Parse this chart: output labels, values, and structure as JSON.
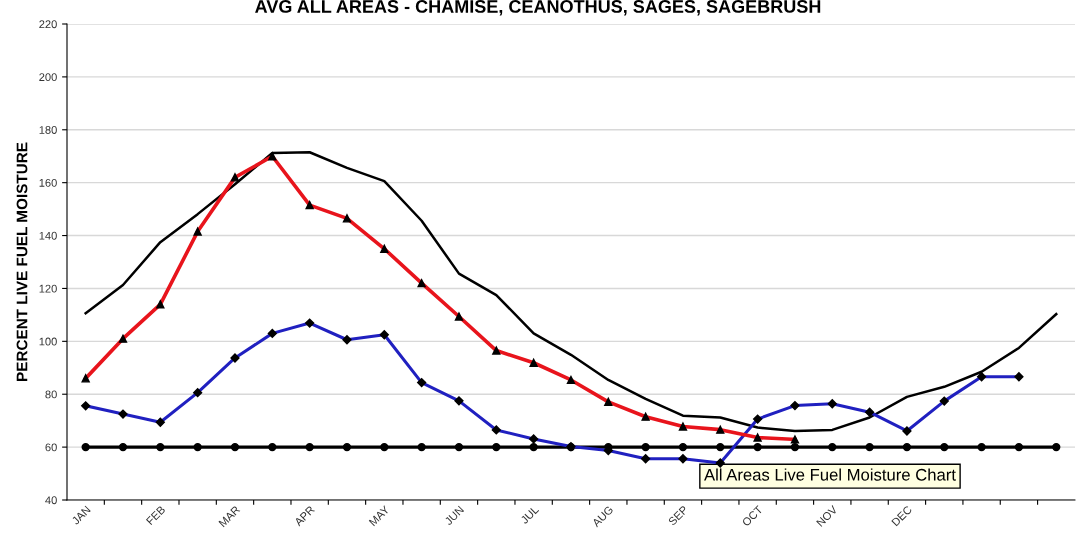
{
  "chart_data": {
    "type": "line",
    "title": "AVG ALL AREAS - CHAMISE, CEANOTHUS, SAGES, SAGEBRUSH",
    "ylabel": "PERCENT LIVE FUEL MOISTURE",
    "categories": [
      "JAN",
      null,
      "FEB",
      null,
      "MAR",
      null,
      "APR",
      null,
      "MAY",
      null,
      "JUN",
      null,
      "JUL",
      null,
      "AUG",
      null,
      "SEP",
      null,
      "OCT",
      null,
      "NOV",
      null,
      "DEC",
      null,
      null,
      null,
      null
    ],
    "series": [
      {
        "color": "#000000",
        "marker": "none",
        "values": [
          110.6,
          121.3,
          137.5,
          148.1,
          159.4,
          171.2,
          171.5,
          165.6,
          160.6,
          145.6,
          125.6,
          117.5,
          103,
          94.9,
          85.4,
          78.2,
          71.9,
          71.2,
          67.4,
          66.1,
          66.5,
          71.2,
          79,
          82.8,
          88.5,
          97.5,
          110.3
        ]
      },
      {
        "color": "#e8141c",
        "marker": "triangle",
        "values": [
          86,
          101,
          114,
          141.5,
          162,
          170,
          151.5,
          146.5,
          135,
          122,
          109.4,
          96.5,
          91.9,
          85.4,
          77.1,
          71.5,
          67.8,
          66.6,
          63.6,
          62.9,
          null,
          null,
          null,
          null,
          null,
          null,
          null
        ]
      },
      {
        "color": "#2020c0",
        "marker": "diamond",
        "values": [
          75.6,
          72.5,
          69.4,
          80.6,
          93.7,
          103,
          106.9,
          100.6,
          102.5,
          84.4,
          77.5,
          66.5,
          63.1,
          60.2,
          58.7,
          55.6,
          55.6,
          54,
          70.6,
          75.7,
          76.4,
          73.2,
          66.1,
          77.4,
          86.6,
          86.6,
          null
        ]
      },
      {
        "color": "#000000",
        "marker": "circle",
        "values": [
          60,
          60,
          60,
          60,
          60,
          60,
          60,
          60,
          60,
          60,
          60,
          60,
          60,
          60,
          60,
          60,
          60,
          60,
          60,
          60,
          60,
          60,
          60,
          60,
          60,
          60,
          60
        ]
      }
    ],
    "ylim": [
      40,
      220
    ],
    "yticks": [
      40,
      60,
      80,
      100,
      120,
      140,
      160,
      180,
      200,
      220
    ],
    "grid": "y",
    "line_style": "solid",
    "annotations": [
      "All Areas Live Fuel Moisture Chart"
    ]
  }
}
